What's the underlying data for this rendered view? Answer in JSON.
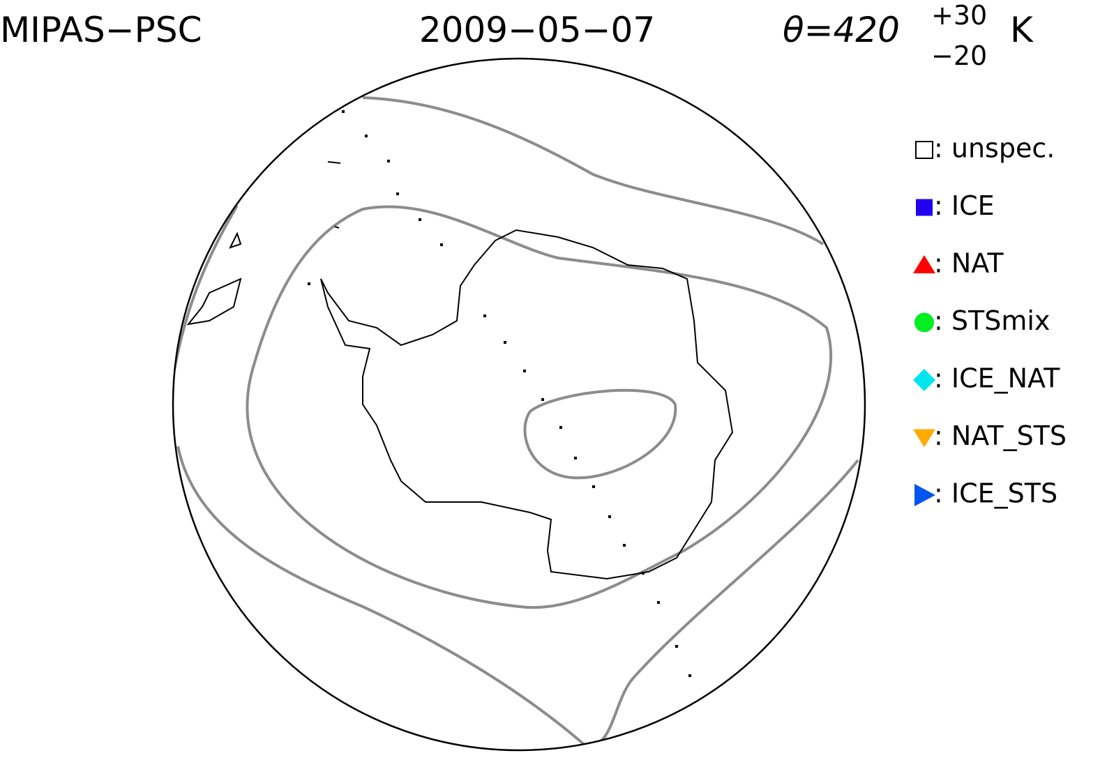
{
  "header": {
    "instrument": "MIPAS−PSC",
    "date": "2009−05−07",
    "theta": "θ=420",
    "theta_upper": "+30",
    "theta_lower": "−20",
    "unit": "K"
  },
  "legend": [
    {
      "label": ": unspec.",
      "color": "#000000",
      "shape": "open-square"
    },
    {
      "label": ": ICE",
      "color": "#2200ee",
      "shape": "square"
    },
    {
      "label": ": NAT",
      "color": "#ff0000",
      "shape": "triangle-up"
    },
    {
      "label": ": STSmix",
      "color": "#00ee22",
      "shape": "circle"
    },
    {
      "label": ": ICE_NAT",
      "color": "#00e5ee",
      "shape": "diamond"
    },
    {
      "label": ": NAT_STS",
      "color": "#ffaa00",
      "shape": "triangle-down"
    },
    {
      "label": ": ICE_STS",
      "color": "#0055ee",
      "shape": "triangle-right"
    }
  ]
}
